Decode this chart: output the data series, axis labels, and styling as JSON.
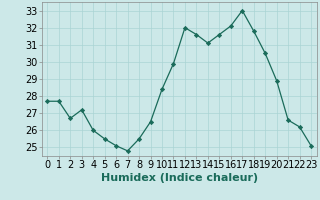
{
  "x": [
    0,
    1,
    2,
    3,
    4,
    5,
    6,
    7,
    8,
    9,
    10,
    11,
    12,
    13,
    14,
    15,
    16,
    17,
    18,
    19,
    20,
    21,
    22,
    23
  ],
  "y": [
    27.7,
    27.7,
    26.7,
    27.2,
    26.0,
    25.5,
    25.1,
    24.8,
    25.5,
    26.5,
    28.4,
    29.9,
    32.0,
    31.6,
    31.1,
    31.6,
    32.1,
    33.0,
    31.8,
    30.5,
    28.9,
    26.6,
    26.2,
    25.1
  ],
  "line_color": "#1a6b5a",
  "marker_color": "#1a6b5a",
  "bg_color": "#cce8e8",
  "grid_color": "#aad4d4",
  "xlabel": "Humidex (Indice chaleur)",
  "ylim": [
    24.5,
    33.5
  ],
  "yticks": [
    25,
    26,
    27,
    28,
    29,
    30,
    31,
    32,
    33
  ],
  "xticks": [
    0,
    1,
    2,
    3,
    4,
    5,
    6,
    7,
    8,
    9,
    10,
    11,
    12,
    13,
    14,
    15,
    16,
    17,
    18,
    19,
    20,
    21,
    22,
    23
  ],
  "xlabel_fontsize": 8,
  "tick_fontsize": 7
}
